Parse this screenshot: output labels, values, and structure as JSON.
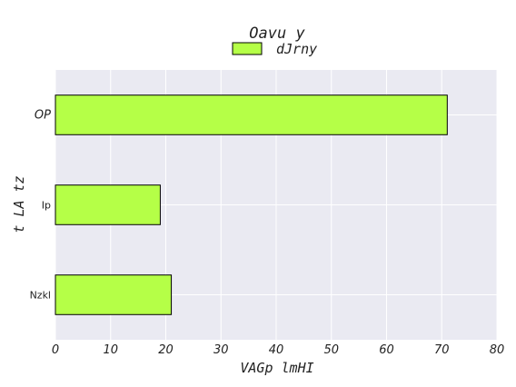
{
  "chart_data": {
    "type": "bar",
    "orientation": "horizontal",
    "title": "Oavu y",
    "xlabel": "VAGp lmHI",
    "ylabel": "t LA tz",
    "categories": [
      "OP",
      "Ip",
      "Nzkl"
    ],
    "series": [
      {
        "name": "dJrny",
        "values": [
          71,
          19,
          21
        ],
        "color": "#b5ff47"
      }
    ],
    "xlim": [
      0,
      80
    ],
    "xticks": [
      0,
      10,
      20,
      30,
      40,
      50,
      60,
      70,
      80
    ],
    "grid": true,
    "legend": "top-center",
    "colors": {
      "plot_background": "#eaeaf2",
      "grid": "#ffffff",
      "bar_edge": "#000000"
    }
  }
}
